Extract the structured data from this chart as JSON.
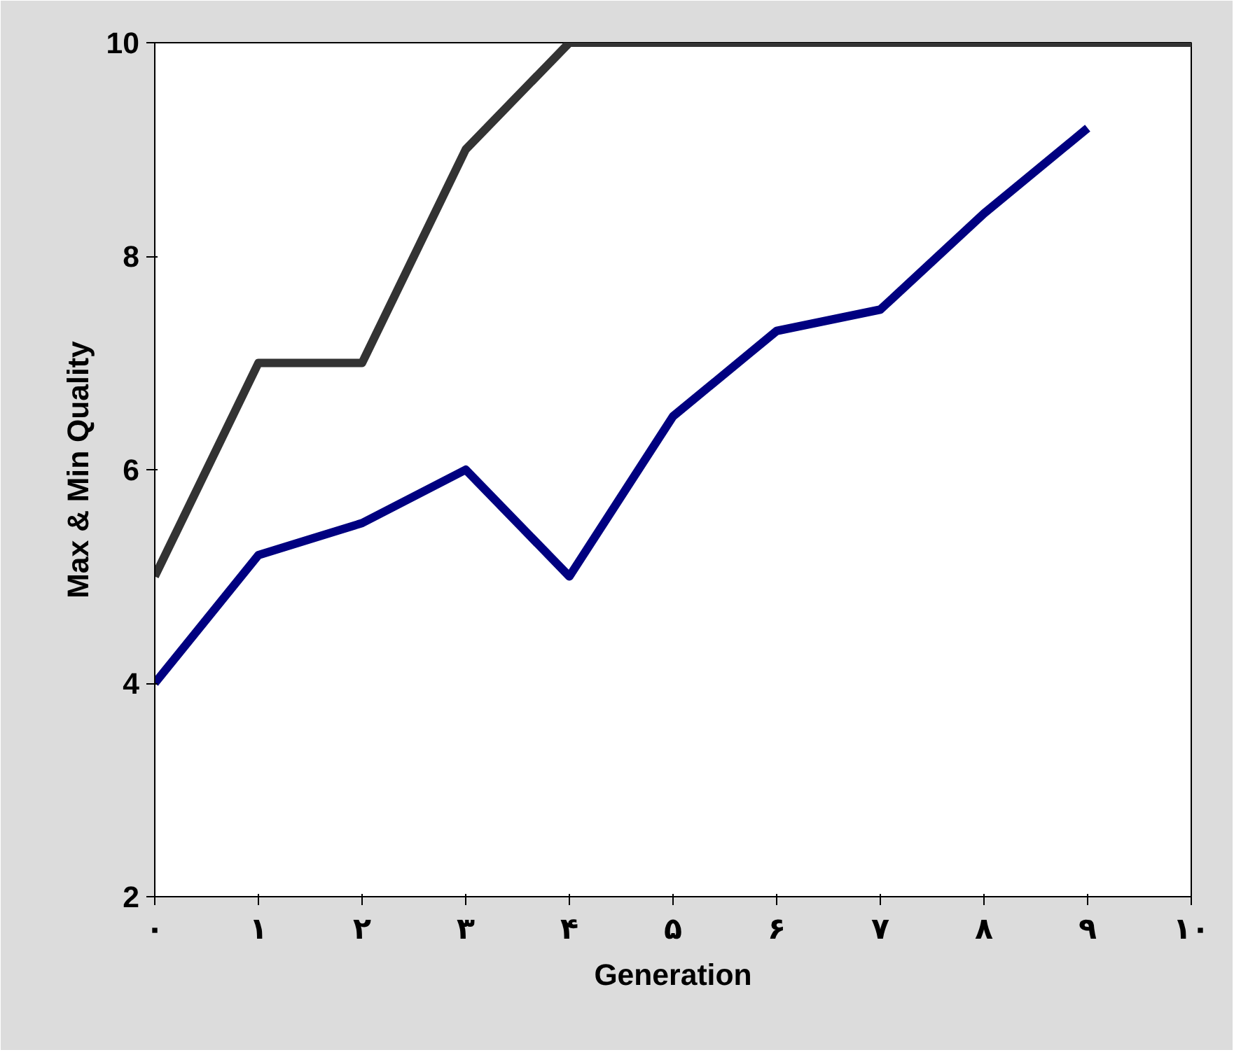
{
  "chart_data": {
    "type": "line",
    "xlabel": "Generation",
    "ylabel": "Max & Min Quality",
    "x": [
      0,
      1,
      2,
      3,
      4,
      5,
      6,
      7,
      8,
      9,
      10
    ],
    "series": [
      {
        "color": "#333333",
        "values": [
          5,
          7,
          7,
          9,
          10,
          10,
          10,
          10,
          10,
          10,
          10
        ]
      },
      {
        "color": "#000080",
        "values": [
          4,
          5.2,
          5.5,
          6,
          5,
          6.5,
          7.3,
          7.5,
          8.4,
          9.2,
          null
        ]
      }
    ],
    "xlim": [
      0,
      10
    ],
    "ylim": [
      2,
      10
    ],
    "xticks": [
      {
        "value": 0,
        "label": "۰"
      },
      {
        "value": 1,
        "label": "۱"
      },
      {
        "value": 2,
        "label": "۲"
      },
      {
        "value": 3,
        "label": "۳"
      },
      {
        "value": 4,
        "label": "۴"
      },
      {
        "value": 5,
        "label": "۵"
      },
      {
        "value": 6,
        "label": "۶"
      },
      {
        "value": 7,
        "label": "۷"
      },
      {
        "value": 8,
        "label": "۸"
      },
      {
        "value": 9,
        "label": "۹"
      },
      {
        "value": 10,
        "label": "۱۰"
      }
    ],
    "yticks": [
      2,
      4,
      6,
      8,
      10
    ],
    "grid": false,
    "marker": "none",
    "line_style": "solid"
  }
}
